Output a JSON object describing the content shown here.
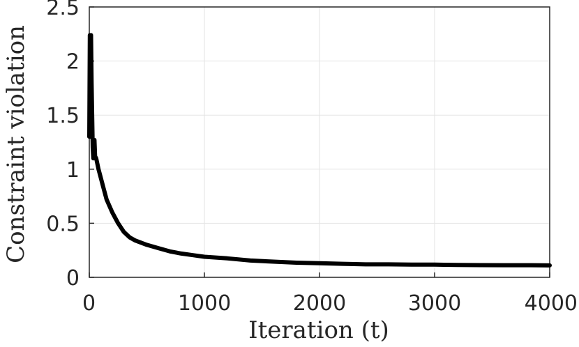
{
  "chart_data": {
    "type": "line",
    "title": "",
    "xlabel": "Iteration (t)",
    "ylabel": "Constraint violation",
    "xlim": [
      0,
      4000
    ],
    "ylim": [
      0,
      2.5
    ],
    "xticks": [
      0,
      1000,
      2000,
      3000,
      4000
    ],
    "xtick_labels": [
      "0",
      "1000",
      "2000",
      "3000",
      "4000"
    ],
    "yticks": [
      0,
      0.5,
      1,
      1.5,
      2,
      2.5
    ],
    "ytick_labels": [
      "0",
      "0.5",
      "1",
      "1.5",
      "2",
      "2.5"
    ],
    "grid": true,
    "line_color": "#000000",
    "series": [
      {
        "x": [
          0,
          5,
          10,
          15,
          20,
          25,
          30,
          35,
          40,
          45,
          50,
          60,
          80,
          100,
          125,
          150,
          200,
          250,
          300,
          350,
          400,
          500,
          600,
          700,
          800,
          900,
          1000,
          1200,
          1400,
          1600,
          1800,
          2000,
          2200,
          2400,
          2600,
          2800,
          3000,
          3200,
          3400,
          3600,
          3800,
          4000
        ],
        "y": [
          1.3,
          2.24,
          1.3,
          2.24,
          1.8,
          1.5,
          1.2,
          1.1,
          1.25,
          1.27,
          1.12,
          1.1,
          1.0,
          0.92,
          0.82,
          0.72,
          0.6,
          0.5,
          0.42,
          0.37,
          0.34,
          0.3,
          0.27,
          0.24,
          0.22,
          0.205,
          0.19,
          0.175,
          0.155,
          0.145,
          0.135,
          0.13,
          0.125,
          0.12,
          0.12,
          0.118,
          0.117,
          0.115,
          0.113,
          0.112,
          0.112,
          0.11
        ]
      }
    ]
  }
}
